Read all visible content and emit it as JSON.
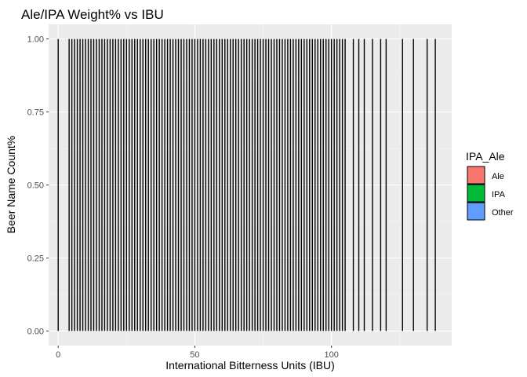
{
  "chart_data": {
    "type": "bar",
    "title": "Ale/IPA Weight% vs IBU",
    "xlabel": "International Bitterness Units (IBU)",
    "ylabel": "Beer Name Count%",
    "xlim": [
      -3.5,
      144
    ],
    "ylim": [
      -0.05,
      1.05
    ],
    "x_ticks": [
      0,
      50,
      100
    ],
    "y_ticks": [
      0.0,
      0.25,
      0.5,
      0.75,
      1.0
    ],
    "y_tick_labels": [
      "0.00",
      "0.25",
      "0.50",
      "0.75",
      "1.00"
    ],
    "grid": true,
    "legend": {
      "title": "IPA_Ale",
      "position": "right",
      "entries": [
        {
          "label": "Ale",
          "color": "#F8766D"
        },
        {
          "label": "IPA",
          "color": "#00BA38"
        },
        {
          "label": "Other",
          "color": "#619CFF"
        }
      ]
    },
    "bar_value": 1.0,
    "x": [
      0,
      4,
      5,
      6,
      7,
      8,
      9,
      10,
      11,
      12,
      13,
      14,
      15,
      16,
      17,
      18,
      19,
      20,
      21,
      22,
      23,
      24,
      25,
      26,
      27,
      28,
      29,
      30,
      31,
      32,
      33,
      34,
      35,
      36,
      37,
      38,
      39,
      40,
      41,
      42,
      43,
      44,
      45,
      46,
      47,
      48,
      49,
      50,
      51,
      52,
      53,
      54,
      55,
      56,
      57,
      58,
      59,
      60,
      61,
      62,
      63,
      64,
      65,
      66,
      67,
      68,
      69,
      70,
      71,
      72,
      73,
      74,
      75,
      76,
      77,
      78,
      79,
      80,
      81,
      82,
      83,
      84,
      85,
      86,
      87,
      88,
      89,
      90,
      91,
      92,
      93,
      94,
      95,
      96,
      97,
      98,
      99,
      100,
      101,
      102,
      103,
      104,
      105,
      108,
      110,
      112,
      115,
      118,
      120,
      126,
      130,
      135,
      138
    ]
  }
}
